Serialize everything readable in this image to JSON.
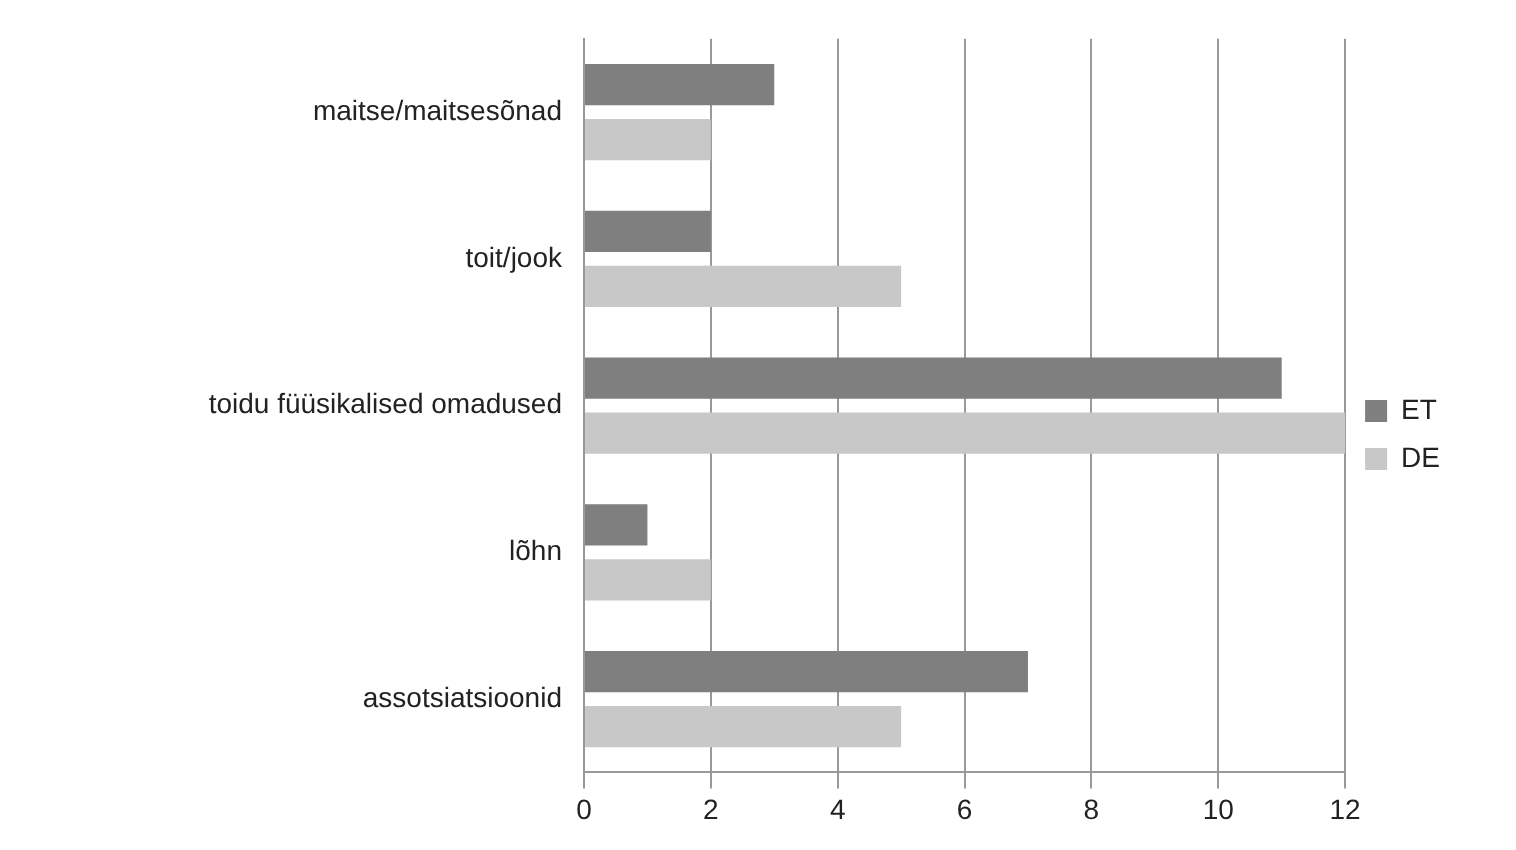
{
  "chart_data": {
    "type": "bar",
    "orientation": "horizontal",
    "categories": [
      "maitse/maitsesõnad",
      "toit/jook",
      "toidu füüsikalised omadused",
      "lõhn",
      "assotsiatsioonid"
    ],
    "series": [
      {
        "name": "ET",
        "color": "#7f7f7f",
        "values": [
          3,
          2,
          11,
          1,
          7
        ]
      },
      {
        "name": "DE",
        "color": "#c8c8c8",
        "values": [
          2,
          5,
          12,
          2,
          5
        ]
      }
    ],
    "xlim": [
      0,
      12
    ],
    "xticks": [
      0,
      2,
      4,
      6,
      8,
      10,
      12
    ],
    "grid": "x",
    "legend": "right"
  }
}
